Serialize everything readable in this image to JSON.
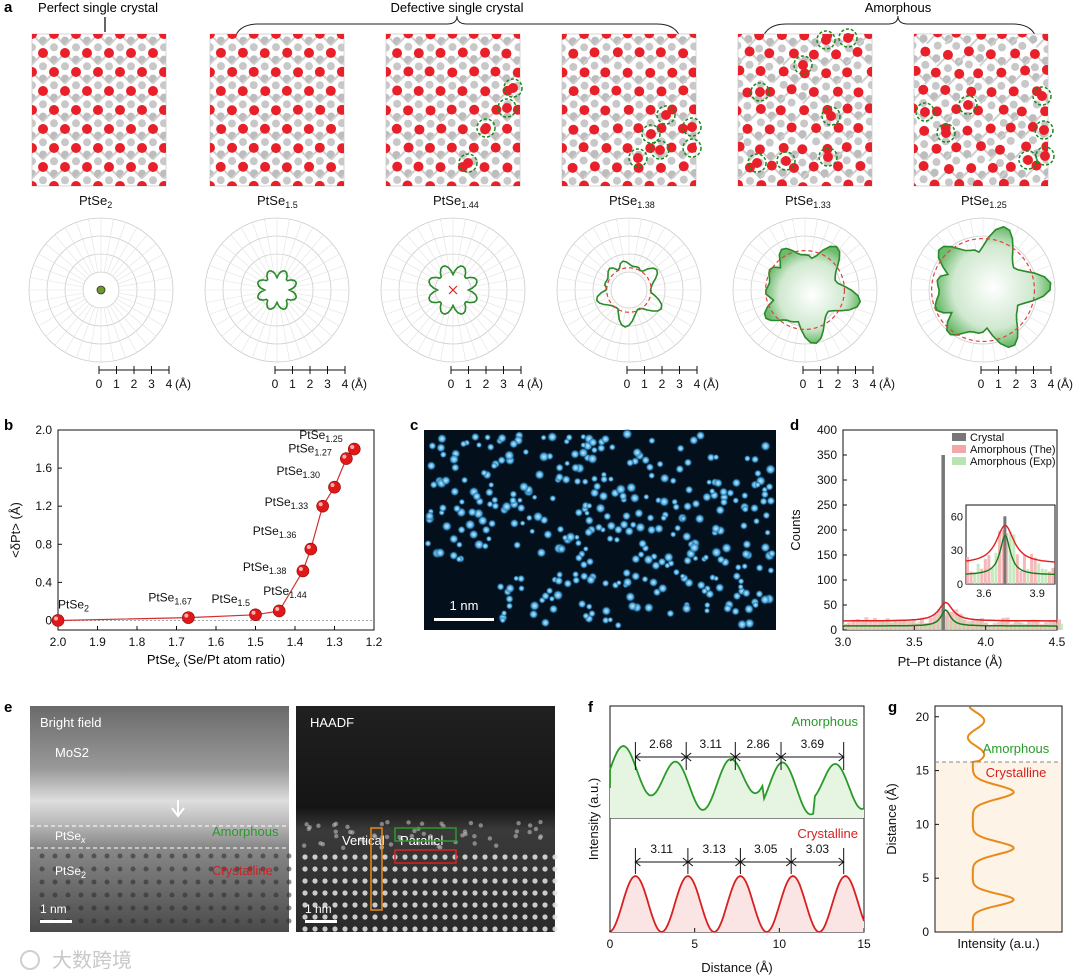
{
  "panel_a": {
    "label": "a",
    "groups": [
      "Perfect single crystal",
      "Defective single crystal",
      "Amorphous"
    ],
    "compounds": [
      {
        "base": "PtSe",
        "sub": "2"
      },
      {
        "base": "PtSe",
        "sub": "1.5"
      },
      {
        "base": "PtSe",
        "sub": "1.44"
      },
      {
        "base": "PtSe",
        "sub": "1.38"
      },
      {
        "base": "PtSe",
        "sub": "1.33"
      },
      {
        "base": "PtSe",
        "sub": "1.25"
      }
    ],
    "scale_ticks": [
      "0",
      "1",
      "2",
      "3",
      "4"
    ],
    "scale_unit": "(Å)"
  },
  "panel_b": {
    "label": "b",
    "chart_data": {
      "type": "scatter",
      "xlabel_main": "PtSe",
      "xlabel_sub": "x",
      "xlabel_rest": " (Se/Pt atom ratio)",
      "ylabel": "<δPt> (Å)",
      "xlim": [
        2.0,
        1.2
      ],
      "ylim": [
        -0.1,
        2.0
      ],
      "x_ticks": [
        "2.0",
        "1.9",
        "1.8",
        "1.7",
        "1.6",
        "1.5",
        "1.4",
        "1.3",
        "1.2"
      ],
      "y_ticks": [
        "0",
        "0.4",
        "0.8",
        "1.2",
        "1.6",
        "2.0"
      ],
      "points": [
        {
          "x": 2.0,
          "y": 0.0,
          "base": "PtSe",
          "sub": "2"
        },
        {
          "x": 1.67,
          "y": 0.03,
          "base": "PtSe",
          "sub": "1.67"
        },
        {
          "x": 1.5,
          "y": 0.06,
          "base": "PtSe",
          "sub": "1.5"
        },
        {
          "x": 1.44,
          "y": 0.1,
          "base": "PtSe",
          "sub": "1.44"
        },
        {
          "x": 1.38,
          "y": 0.52,
          "base": "PtSe",
          "sub": "1.38"
        },
        {
          "x": 1.36,
          "y": 0.75,
          "base": "PtSe",
          "sub": "1.36"
        },
        {
          "x": 1.33,
          "y": 1.2,
          "base": "PtSe",
          "sub": "1.33"
        },
        {
          "x": 1.3,
          "y": 1.4,
          "base": "PtSe",
          "sub": "1.30"
        },
        {
          "x": 1.27,
          "y": 1.7,
          "base": "PtSe",
          "sub": "1.27"
        },
        {
          "x": 1.25,
          "y": 1.8,
          "base": "PtSe",
          "sub": "1.25"
        }
      ]
    }
  },
  "panel_c": {
    "label": "c",
    "scale": "1 nm"
  },
  "panel_d": {
    "label": "d",
    "chart_data": {
      "type": "bar",
      "xlabel": "Pt–Pt distance (Å)",
      "ylabel": "Counts",
      "xlim": [
        3.0,
        4.5
      ],
      "ylim": [
        0,
        400
      ],
      "x_ticks": [
        "3.0",
        "3.5",
        "4.0",
        "4.5"
      ],
      "y_ticks": [
        "0",
        "50",
        "100",
        "150",
        "200",
        "250",
        "300",
        "350",
        "400"
      ],
      "legend": [
        "Crystal",
        "Amorphous (The)",
        "Amorphous (Exp)"
      ],
      "series": [
        {
          "name": "Crystal",
          "x": [
            3.7
          ],
          "values": [
            350
          ]
        },
        {
          "name": "Amorphous (The)",
          "peak_x": 3.72,
          "peak_value": 55,
          "baseline": 18
        },
        {
          "name": "Amorphous (Exp)",
          "peak_x": 3.72,
          "peak_value": 40,
          "baseline": 8
        }
      ],
      "inset": {
        "x_ticks": [
          "3.6",
          "3.9"
        ],
        "y_ticks": [
          "0",
          "30",
          "60"
        ]
      }
    }
  },
  "panel_e": {
    "label": "e",
    "left_title": "Bright field",
    "right_title": "HAADF",
    "labels": {
      "mos2": "MoS2",
      "ptsex_base": "PtSe",
      "ptsex_sub": "x",
      "ptse2_base": "PtSe",
      "ptse2_sub": "2",
      "amorphous": "Amorphous",
      "crystalline": "Crystalline",
      "vertical": "Vertical",
      "parallel": "Parallel"
    },
    "scale": "1 nm"
  },
  "panel_f": {
    "label": "f",
    "chart_data": {
      "type": "line",
      "xlabel": "Distance (Å)",
      "ylabel": "Intensity (a.u.)",
      "xlim": [
        0,
        15
      ],
      "x_ticks": [
        "0",
        "5",
        "10",
        "15"
      ],
      "series": [
        {
          "name": "Amorphous",
          "spacings": [
            "2.68",
            "3.11",
            "2.86",
            "3.69"
          ]
        },
        {
          "name": "Crystalline",
          "spacings": [
            "3.11",
            "3.13",
            "3.05",
            "3.03"
          ]
        }
      ]
    }
  },
  "panel_g": {
    "label": "g",
    "chart_data": {
      "type": "line",
      "xlabel": "Intensity (a.u.)",
      "ylabel": "Distance (Å)",
      "ylim": [
        0,
        21
      ],
      "y_ticks": [
        "0",
        "5",
        "10",
        "15",
        "20"
      ],
      "regions": [
        "Amorphous",
        "Crystalline"
      ],
      "boundary": 15.8
    }
  },
  "watermark": "大数跨境",
  "colors": {
    "red": "#e02020",
    "green": "#2a9a2a",
    "orange": "#e88a1a",
    "se_atom": "#e8202a",
    "pt_atom": "#bdbdbd"
  }
}
